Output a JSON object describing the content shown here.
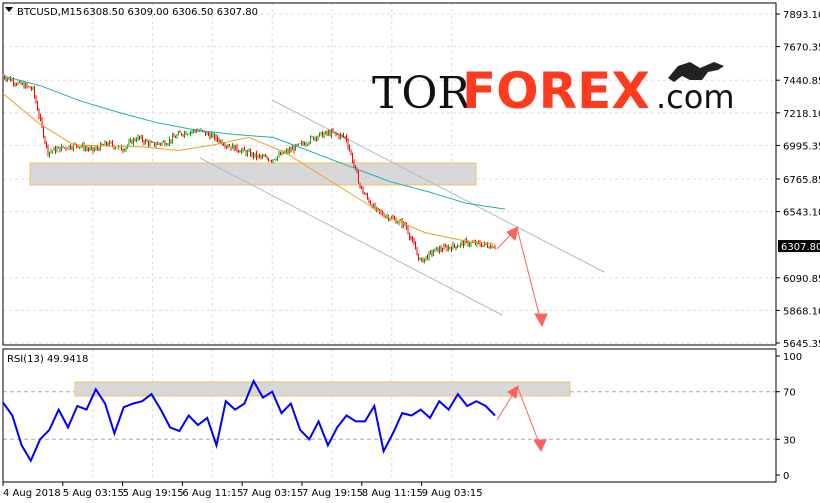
{
  "header": {
    "symbol": "BTCUSD,M15",
    "ohlc": "6308.50 6309.00 6306.50 6307.80"
  },
  "logo": {
    "text_a": "TOR",
    "text_b": "FOREX",
    "text_c": ".com"
  },
  "colors": {
    "bull_candle": "#00aa00",
    "bear_candle": "#ff0000",
    "ma_fast": "#f0a020",
    "ma_slow": "#20b0b0",
    "rsi": "#0000ff",
    "arrow": "#ff6060",
    "logo_accent": "#ff3b1f"
  },
  "chart_data": [
    {
      "type": "line",
      "title": "BTCUSD,M15",
      "y_ticks": [
        "7893.10",
        "7670.35",
        "7440.85",
        "7218.10",
        "6995.35",
        "6765.85",
        "6543.10",
        "6090.85",
        "5868.10",
        "5645.35"
      ],
      "ylim": [
        5645.35,
        7893.1
      ],
      "current_price": "6307.80",
      "x_ticks": [
        "4 Aug 2018",
        "5 Aug 03:15",
        "5 Aug 19:15",
        "6 Aug 11:15",
        "7 Aug 03:15",
        "7 Aug 19:15",
        "8 Aug 11:15",
        "9 Aug 03:15"
      ],
      "grid": true,
      "price_path": [
        7470,
        7420,
        7380,
        6950,
        6980,
        7000,
        6960,
        7010,
        6970,
        7050,
        7000,
        7020,
        7080,
        7100,
        7060,
        7000,
        6960,
        6920,
        6900,
        6950,
        7000,
        7060,
        7080,
        7050,
        6700,
        6550,
        6500,
        6450,
        6200,
        6280,
        6300,
        6330,
        6320,
        6307.8
      ],
      "ma_fast": [
        7350,
        7150,
        7000,
        6990,
        6985,
        6960,
        7000,
        7050,
        6950,
        6800,
        6650,
        6500,
        6400,
        6350,
        6320
      ],
      "ma_slow": [
        7470,
        7400,
        7300,
        7220,
        7150,
        7100,
        7070,
        7050,
        6950,
        6850,
        6750,
        6680,
        6600,
        6560
      ]
    },
    {
      "type": "line",
      "title": "RSI(13) 49.9418",
      "y_ticks": [
        "100",
        "70",
        "30",
        "0"
      ],
      "ylim": [
        0,
        100
      ],
      "levels": [
        70,
        30
      ],
      "values": [
        61,
        50,
        25,
        12,
        30,
        38,
        55,
        40,
        58,
        55,
        72,
        60,
        35,
        57,
        60,
        62,
        68,
        55,
        40,
        37,
        50,
        42,
        48,
        25,
        62,
        55,
        60,
        79,
        65,
        70,
        52,
        60,
        38,
        30,
        45,
        25,
        40,
        50,
        45,
        45,
        58,
        20,
        35,
        52,
        50,
        55,
        48,
        62,
        55,
        68,
        58,
        62,
        58,
        50
      ]
    }
  ]
}
